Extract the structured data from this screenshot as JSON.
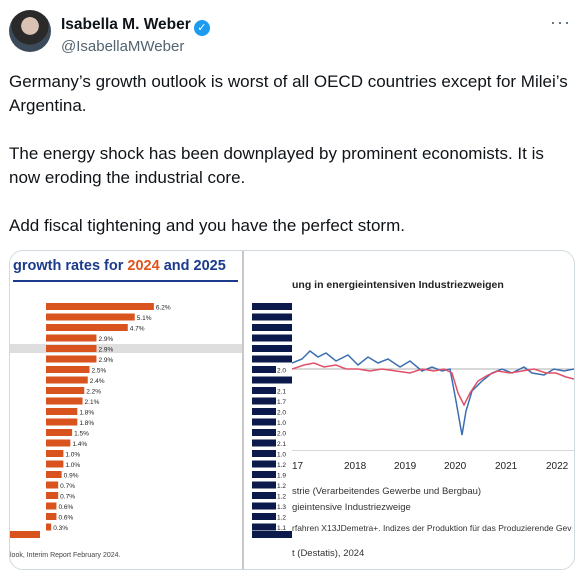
{
  "tweet": {
    "author_name": "Isabella M. Weber",
    "handle": "@IsabellaMWeber",
    "more_label": "···",
    "verified_mark": "✓",
    "paragraphs": [
      "Germany’s growth outlook is worst of all OECD countries except for Milei’s Argentina.",
      "The energy shock has been downplayed by prominent economists. It is now eroding the industrial core.",
      "Add fiscal tightening and you have the perfect storm."
    ]
  },
  "image_left": {
    "title_prefix": "growth rates for ",
    "year1": "2024",
    "mid": " and ",
    "year2": "2025",
    "source": "look, Interim Report February 2024.",
    "bars_color": "#d9531e",
    "highlight_index": 4,
    "chart_data": {
      "type": "bar",
      "values": [
        6.2,
        5.1,
        4.7,
        2.9,
        2.9,
        2.9,
        2.5,
        2.4,
        2.2,
        2.1,
        1.8,
        1.8,
        1.5,
        1.4,
        1.0,
        1.0,
        0.9,
        0.7,
        0.7,
        0.6,
        0.6,
        0.3
      ],
      "labels": [
        "6.2%",
        "5.1%",
        "4.7%",
        "2.9%",
        "2.9%",
        "2.9%",
        "2.5%",
        "2.4%",
        "2.2%",
        "2.1%",
        "1.8%",
        "1.8%",
        "1.5%",
        "1.4%",
        "1.0%",
        "1.0%",
        "0.9%",
        "0.7%",
        "0.7%",
        "0.6%",
        "0.6%",
        "0.3%"
      ]
    }
  },
  "image_mid": {
    "bars_color": "#0b1a4a",
    "chart_data": {
      "type": "bar",
      "labels": [
        "",
        "",
        "",
        "",
        "",
        "",
        "2.0",
        "",
        "2.1",
        "1.7",
        "2.0",
        "1.0",
        "2.0",
        "2.1",
        "1.0",
        "1.2",
        "1.9",
        "1.2",
        "1.2",
        "1.3",
        "1.2",
        "1.1"
      ]
    }
  },
  "image_right": {
    "title": "ung in energieintensiven Industriezweigen",
    "x_ticks": [
      "17",
      "2018",
      "2019",
      "2020",
      "2021",
      "2022"
    ],
    "legend1": "strie (Verarbeitendes Gewerbe und Bergbau)",
    "legend2": "gieintensive Industriezweige",
    "note": "rfahren X13JDemetra+. Indizes der Produktion für das Produzierende Gev",
    "source": "t (Destatis), 2024",
    "series_colors": [
      "#3a6fb0",
      "#e0506a"
    ]
  }
}
